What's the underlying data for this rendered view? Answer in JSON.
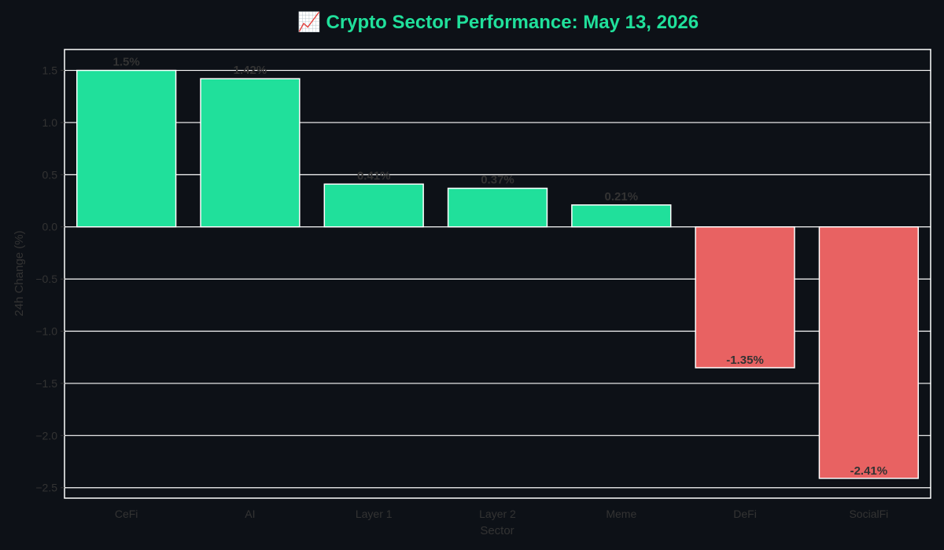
{
  "chart_data": {
    "type": "bar",
    "title": "📈 Crypto Sector Performance: May 13, 2026",
    "xlabel": "Sector",
    "ylabel": "24h Change (%)",
    "categories": [
      "CeFi",
      "AI",
      "Layer 1",
      "Layer 2",
      "Meme",
      "DeFi",
      "SocialFi"
    ],
    "values": [
      1.5,
      1.42,
      0.41,
      0.37,
      0.21,
      -1.35,
      -2.41
    ],
    "value_labels": [
      "1.5%",
      "1.42%",
      "0.41%",
      "0.37%",
      "0.21%",
      "-1.35%",
      "-2.41%"
    ],
    "ylim": [
      -2.6,
      1.7
    ],
    "yticks": [
      1.5,
      1.0,
      0.5,
      0.0,
      -0.5,
      -1.0,
      -1.5,
      -2.0,
      -2.5
    ],
    "ytick_labels": [
      "1.5",
      "1.0",
      "0.5",
      "0.0",
      "−0.5",
      "−1.0",
      "−1.5",
      "−2.0",
      "−2.5"
    ],
    "grid": "horizontal",
    "colors": {
      "positive": "#20e09b",
      "negative": "#e86262",
      "title": "#20e09b",
      "background": "#0d1117",
      "axis_text": "#333333",
      "grid": "#ffffff"
    }
  }
}
